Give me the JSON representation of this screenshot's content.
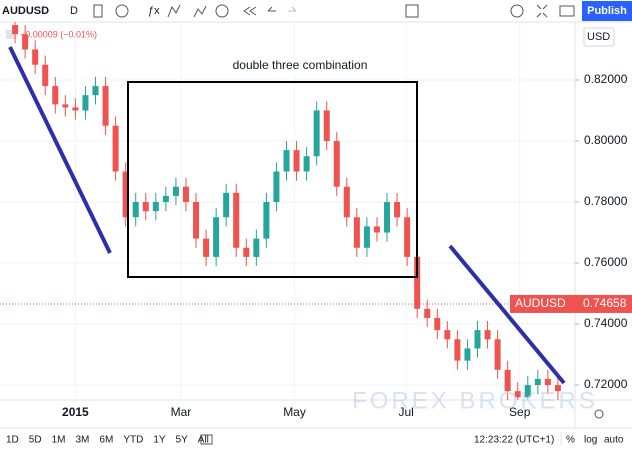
{
  "toolbar": {
    "symbol": "AUDUSD",
    "interval": "D",
    "publish": "Publish"
  },
  "legend": {
    "symbol": "AUDUSD",
    "change": "−0.00009 (−0.01%)"
  },
  "currency": "USD",
  "chart_data": {
    "type": "candlestick",
    "annotation": "double three combination",
    "watermark": "FOREX BROKERS",
    "up_color": "#26a69a",
    "down_color": "#ef5350",
    "open": [
      0.838,
      0.835,
      0.83,
      0.825,
      0.818,
      0.812,
      0.811,
      0.81,
      0.815,
      0.818,
      0.805,
      0.79,
      0.775,
      0.78,
      0.777,
      0.78,
      0.782,
      0.785,
      0.78,
      0.768,
      0.762,
      0.775,
      0.783,
      0.765,
      0.762,
      0.768,
      0.78,
      0.79,
      0.797,
      0.79,
      0.795,
      0.81,
      0.8,
      0.785,
      0.775,
      0.765,
      0.772,
      0.77,
      0.78,
      0.775,
      0.762,
      0.745,
      0.742,
      0.738,
      0.735,
      0.728,
      0.732,
      0.738,
      0.735,
      0.725,
      0.718,
      0.716,
      0.72,
      0.722,
      0.72
    ],
    "high": [
      0.841,
      0.838,
      0.833,
      0.828,
      0.821,
      0.815,
      0.814,
      0.818,
      0.821,
      0.821,
      0.808,
      0.793,
      0.783,
      0.783,
      0.783,
      0.785,
      0.788,
      0.788,
      0.783,
      0.771,
      0.778,
      0.786,
      0.786,
      0.768,
      0.771,
      0.783,
      0.793,
      0.8,
      0.8,
      0.798,
      0.813,
      0.813,
      0.803,
      0.788,
      0.778,
      0.775,
      0.775,
      0.783,
      0.783,
      0.778,
      0.765,
      0.748,
      0.745,
      0.741,
      0.738,
      0.735,
      0.741,
      0.741,
      0.738,
      0.728,
      0.721,
      0.723,
      0.725,
      0.725,
      0.723
    ],
    "low": [
      0.832,
      0.827,
      0.822,
      0.815,
      0.809,
      0.808,
      0.807,
      0.807,
      0.812,
      0.802,
      0.787,
      0.772,
      0.772,
      0.774,
      0.774,
      0.777,
      0.779,
      0.777,
      0.765,
      0.759,
      0.759,
      0.772,
      0.762,
      0.759,
      0.759,
      0.765,
      0.777,
      0.787,
      0.787,
      0.787,
      0.792,
      0.797,
      0.782,
      0.772,
      0.762,
      0.762,
      0.767,
      0.767,
      0.772,
      0.759,
      0.742,
      0.739,
      0.735,
      0.732,
      0.725,
      0.725,
      0.729,
      0.732,
      0.722,
      0.715,
      0.714,
      0.714,
      0.717,
      0.717,
      0.715
    ],
    "close": [
      0.835,
      0.83,
      0.825,
      0.818,
      0.812,
      0.811,
      0.81,
      0.815,
      0.818,
      0.805,
      0.79,
      0.775,
      0.78,
      0.777,
      0.78,
      0.782,
      0.785,
      0.78,
      0.768,
      0.762,
      0.775,
      0.783,
      0.765,
      0.762,
      0.768,
      0.78,
      0.79,
      0.797,
      0.79,
      0.795,
      0.81,
      0.8,
      0.785,
      0.775,
      0.765,
      0.772,
      0.77,
      0.78,
      0.775,
      0.762,
      0.745,
      0.742,
      0.738,
      0.735,
      0.728,
      0.732,
      0.738,
      0.735,
      0.725,
      0.718,
      0.716,
      0.72,
      0.722,
      0.72,
      0.718
    ],
    "xlim": [
      -1.5,
      55.7
    ],
    "xticks": [
      {
        "value": 6,
        "label": "2015"
      },
      {
        "value": 16.5,
        "label": "Mar"
      },
      {
        "value": 27.8,
        "label": "May"
      },
      {
        "value": 38.9,
        "label": "Jul"
      },
      {
        "value": 50.2,
        "label": "Sep"
      }
    ],
    "ylim": [
      0.7151,
      0.839
    ],
    "yticks": [
      {
        "value": 0.72,
        "label": "0.72000"
      },
      {
        "value": 0.74,
        "label": "0.74000"
      },
      {
        "value": 0.76,
        "label": "0.76000"
      },
      {
        "value": 0.78,
        "label": "0.78000"
      },
      {
        "value": 0.8,
        "label": "0.80000"
      },
      {
        "value": 0.82,
        "label": "0.82000"
      }
    ],
    "price_label": {
      "name": "AUDUSD",
      "value": 0.74658
    }
  },
  "ranges": [
    "1D",
    "5D",
    "1M",
    "3M",
    "6M",
    "YTD",
    "1Y",
    "5Y",
    "All"
  ],
  "status": {
    "time": "12:23:22 (UTC+1)",
    "percent": "%",
    "log": "log",
    "auto": "auto"
  }
}
